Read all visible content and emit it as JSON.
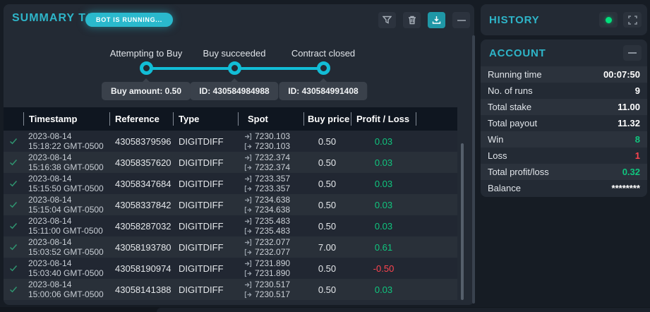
{
  "colors": {
    "accent": "#2eb5c9",
    "green": "#10c57e",
    "red": "#ff444f",
    "stepper": "#12bdd6"
  },
  "summary": {
    "title": "SUMMARY TABLE",
    "badge": "BOT IS RUNNING...",
    "toolbar_icons": [
      "filter-icon",
      "trash-icon",
      "download-icon",
      "minimize-icon"
    ],
    "stepper": {
      "steps": [
        {
          "label": "Attempting to Buy",
          "tooltip": "Buy amount: 0.50"
        },
        {
          "label": "Buy succeeded",
          "tooltip": "ID: 430584984988"
        },
        {
          "label": "Contract closed",
          "tooltip": "ID: 430584991408"
        }
      ]
    },
    "table": {
      "headers": [
        "Timestamp",
        "Reference",
        "Type",
        "Spot",
        "Buy price",
        "Profit / Loss"
      ],
      "rows": [
        {
          "date": "2023-08-14",
          "time": "15:18:22 GMT-0500",
          "reference": "43058379596",
          "type": "DIGITDIFF",
          "entry_spot": "7230.103",
          "exit_spot": "7230.103",
          "buy_price": "0.50",
          "profit_loss": "0.03",
          "result": "win"
        },
        {
          "date": "2023-08-14",
          "time": "15:16:38 GMT-0500",
          "reference": "43058357620",
          "type": "DIGITDIFF",
          "entry_spot": "7232.374",
          "exit_spot": "7232.374",
          "buy_price": "0.50",
          "profit_loss": "0.03",
          "result": "win"
        },
        {
          "date": "2023-08-14",
          "time": "15:15:50 GMT-0500",
          "reference": "43058347684",
          "type": "DIGITDIFF",
          "entry_spot": "7233.357",
          "exit_spot": "7233.357",
          "buy_price": "0.50",
          "profit_loss": "0.03",
          "result": "win"
        },
        {
          "date": "2023-08-14",
          "time": "15:15:04 GMT-0500",
          "reference": "43058337842",
          "type": "DIGITDIFF",
          "entry_spot": "7234.638",
          "exit_spot": "7234.638",
          "buy_price": "0.50",
          "profit_loss": "0.03",
          "result": "win"
        },
        {
          "date": "2023-08-14",
          "time": "15:11:00 GMT-0500",
          "reference": "43058287032",
          "type": "DIGITDIFF",
          "entry_spot": "7235.483",
          "exit_spot": "7235.483",
          "buy_price": "0.50",
          "profit_loss": "0.03",
          "result": "win"
        },
        {
          "date": "2023-08-14",
          "time": "15:03:52 GMT-0500",
          "reference": "43058193780",
          "type": "DIGITDIFF",
          "entry_spot": "7232.077",
          "exit_spot": "7232.077",
          "buy_price": "7.00",
          "profit_loss": "0.61",
          "result": "win"
        },
        {
          "date": "2023-08-14",
          "time": "15:03:40 GMT-0500",
          "reference": "43058190974",
          "type": "DIGITDIFF",
          "entry_spot": "7231.890",
          "exit_spot": "7231.890",
          "buy_price": "0.50",
          "profit_loss": "-0.50",
          "result": "loss"
        },
        {
          "date": "2023-08-14",
          "time": "15:00:06 GMT-0500",
          "reference": "43058141388",
          "type": "DIGITDIFF",
          "entry_spot": "7230.517",
          "exit_spot": "7230.517",
          "buy_price": "0.50",
          "profit_loss": "0.03",
          "result": "win"
        }
      ]
    }
  },
  "history": {
    "title": "HISTORY",
    "status_icon": "green-dot",
    "icons": [
      "expand-icon"
    ]
  },
  "account": {
    "title": "ACCOUNT",
    "icons": [
      "minimize-icon"
    ],
    "rows": [
      {
        "label": "Running time",
        "value": "00:07:50",
        "color": "default"
      },
      {
        "label": "No. of runs",
        "value": "9",
        "color": "default"
      },
      {
        "label": "Total stake",
        "value": "11.00",
        "color": "default"
      },
      {
        "label": "Total payout",
        "value": "11.32",
        "color": "default"
      },
      {
        "label": "Win",
        "value": "8",
        "color": "green"
      },
      {
        "label": "Loss",
        "value": "1",
        "color": "red"
      },
      {
        "label": "Total profit/loss",
        "value": "0.32",
        "color": "green"
      },
      {
        "label": "Balance",
        "value": "********",
        "color": "default"
      }
    ]
  }
}
